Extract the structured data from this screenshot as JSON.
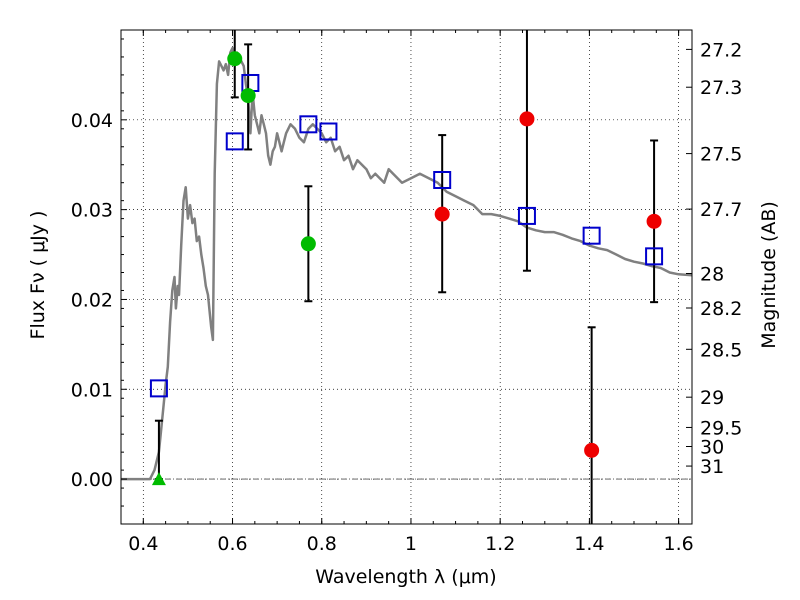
{
  "chart_data": {
    "type": "scatter",
    "xlabel": "Wavelength  λ (μm)",
    "ylabel": "Flux  Fν ( μJy )",
    "y2label": "Magnitude (AB)",
    "xlim": [
      0.35,
      1.63
    ],
    "ylim": [
      -0.005,
      0.05
    ],
    "grid": true,
    "x_ticks": [
      0.4,
      0.6,
      0.8,
      1.0,
      1.2,
      1.4,
      1.6
    ],
    "x_tick_labels": [
      "0.4",
      "0.6",
      "0.8",
      "1",
      "1.2",
      "1.4",
      "1.6"
    ],
    "y_ticks": [
      0.0,
      0.01,
      0.02,
      0.03,
      0.04
    ],
    "y_tick_labels": [
      "0.00",
      "0.01",
      "0.02",
      "0.03",
      "0.04"
    ],
    "y2_ticks": [
      {
        "flux": 0.04784,
        "label": "27.2"
      },
      {
        "flux": 0.04363,
        "label": "27.3"
      },
      {
        "flux": 0.03624,
        "label": "27.5"
      },
      {
        "flux": 0.03006,
        "label": "27.7"
      },
      {
        "flux": 0.02289,
        "label": "28"
      },
      {
        "flux": 0.01905,
        "label": "28.2"
      },
      {
        "flux": 0.01445,
        "label": "28.5"
      },
      {
        "flux": 0.00912,
        "label": "29"
      },
      {
        "flux": 0.00575,
        "label": "29.5"
      },
      {
        "flux": 0.00363,
        "label": "30"
      },
      {
        "flux": 0.00145,
        "label": "31"
      }
    ],
    "model_sed": {
      "color": "#808080",
      "points": [
        [
          0.35,
          0.0
        ],
        [
          0.415,
          0.0
        ],
        [
          0.425,
          0.001
        ],
        [
          0.435,
          0.003
        ],
        [
          0.445,
          0.008
        ],
        [
          0.45,
          0.0105
        ],
        [
          0.455,
          0.0125
        ],
        [
          0.46,
          0.0175
        ],
        [
          0.465,
          0.021
        ],
        [
          0.47,
          0.0225
        ],
        [
          0.473,
          0.019
        ],
        [
          0.477,
          0.0215
        ],
        [
          0.48,
          0.0205
        ],
        [
          0.485,
          0.026
        ],
        [
          0.49,
          0.031
        ],
        [
          0.495,
          0.0325
        ],
        [
          0.5,
          0.029
        ],
        [
          0.505,
          0.0305
        ],
        [
          0.51,
          0.0285
        ],
        [
          0.515,
          0.029
        ],
        [
          0.52,
          0.0265
        ],
        [
          0.525,
          0.027
        ],
        [
          0.53,
          0.025
        ],
        [
          0.535,
          0.0235
        ],
        [
          0.54,
          0.0215
        ],
        [
          0.545,
          0.0205
        ],
        [
          0.548,
          0.019
        ],
        [
          0.552,
          0.017
        ],
        [
          0.556,
          0.0155
        ],
        [
          0.56,
          0.034
        ],
        [
          0.565,
          0.044
        ],
        [
          0.57,
          0.0465
        ],
        [
          0.575,
          0.046
        ],
        [
          0.58,
          0.0455
        ],
        [
          0.585,
          0.0462
        ],
        [
          0.59,
          0.045
        ],
        [
          0.595,
          0.0475
        ],
        [
          0.6,
          0.048
        ],
        [
          0.605,
          0.046
        ],
        [
          0.61,
          0.0475
        ],
        [
          0.615,
          0.047
        ],
        [
          0.62,
          0.0465
        ],
        [
          0.625,
          0.046
        ],
        [
          0.63,
          0.044
        ],
        [
          0.635,
          0.0425
        ],
        [
          0.64,
          0.0385
        ],
        [
          0.645,
          0.043
        ],
        [
          0.65,
          0.0405
        ],
        [
          0.655,
          0.0395
        ],
        [
          0.66,
          0.0385
        ],
        [
          0.665,
          0.0405
        ],
        [
          0.67,
          0.0395
        ],
        [
          0.675,
          0.0385
        ],
        [
          0.68,
          0.036
        ],
        [
          0.685,
          0.035
        ],
        [
          0.69,
          0.0365
        ],
        [
          0.695,
          0.037
        ],
        [
          0.7,
          0.0385
        ],
        [
          0.705,
          0.0375
        ],
        [
          0.71,
          0.0365
        ],
        [
          0.715,
          0.0375
        ],
        [
          0.72,
          0.0385
        ],
        [
          0.73,
          0.0395
        ],
        [
          0.74,
          0.039
        ],
        [
          0.75,
          0.038
        ],
        [
          0.76,
          0.0375
        ],
        [
          0.77,
          0.039
        ],
        [
          0.78,
          0.0395
        ],
        [
          0.79,
          0.039
        ],
        [
          0.8,
          0.0385
        ],
        [
          0.81,
          0.0375
        ],
        [
          0.82,
          0.038
        ],
        [
          0.83,
          0.0365
        ],
        [
          0.84,
          0.037
        ],
        [
          0.85,
          0.0355
        ],
        [
          0.86,
          0.036
        ],
        [
          0.87,
          0.0345
        ],
        [
          0.88,
          0.0355
        ],
        [
          0.89,
          0.035
        ],
        [
          0.9,
          0.0345
        ],
        [
          0.91,
          0.0335
        ],
        [
          0.92,
          0.034
        ],
        [
          0.93,
          0.0335
        ],
        [
          0.94,
          0.033
        ],
        [
          0.95,
          0.0345
        ],
        [
          0.96,
          0.034
        ],
        [
          0.98,
          0.033
        ],
        [
          1.0,
          0.0335
        ],
        [
          1.02,
          0.034
        ],
        [
          1.04,
          0.0335
        ],
        [
          1.06,
          0.033
        ],
        [
          1.08,
          0.032
        ],
        [
          1.1,
          0.0315
        ],
        [
          1.12,
          0.031
        ],
        [
          1.14,
          0.0305
        ],
        [
          1.16,
          0.0295
        ],
        [
          1.18,
          0.0295
        ],
        [
          1.2,
          0.0293
        ],
        [
          1.22,
          0.029
        ],
        [
          1.24,
          0.0287
        ],
        [
          1.26,
          0.028
        ],
        [
          1.28,
          0.0277
        ],
        [
          1.3,
          0.0275
        ],
        [
          1.32,
          0.0275
        ],
        [
          1.34,
          0.0272
        ],
        [
          1.36,
          0.0268
        ],
        [
          1.38,
          0.0265
        ],
        [
          1.4,
          0.026
        ],
        [
          1.42,
          0.0257
        ],
        [
          1.44,
          0.0255
        ],
        [
          1.46,
          0.025
        ],
        [
          1.48,
          0.0245
        ],
        [
          1.5,
          0.0242
        ],
        [
          1.52,
          0.024
        ],
        [
          1.54,
          0.0237
        ],
        [
          1.56,
          0.0235
        ],
        [
          1.58,
          0.023
        ],
        [
          1.6,
          0.0228
        ],
        [
          1.63,
          0.0227
        ]
      ]
    },
    "model_photometry": {
      "color": "#0000cc",
      "marker": "open-square",
      "points": [
        [
          0.435,
          0.0101
        ],
        [
          0.605,
          0.0376
        ],
        [
          0.64,
          0.0441
        ],
        [
          0.77,
          0.0395
        ],
        [
          0.815,
          0.0387
        ],
        [
          1.07,
          0.0333
        ],
        [
          1.26,
          0.0293
        ],
        [
          1.405,
          0.0271
        ],
        [
          1.545,
          0.0248
        ]
      ]
    },
    "observed_optical": {
      "color": "#00bb00",
      "marker": "filled-circle",
      "points": [
        {
          "x": 0.605,
          "y": 0.0468,
          "yerr_lo": 0.0043,
          "yerr_hi": 0.004
        },
        {
          "x": 0.635,
          "y": 0.0427,
          "yerr_lo": 0.006,
          "yerr_hi": 0.0057
        },
        {
          "x": 0.77,
          "y": 0.0262,
          "yerr_lo": 0.0064,
          "yerr_hi": 0.0064
        }
      ],
      "upper_limit": {
        "x": 0.435,
        "y": 0.0,
        "err_hi": 0.0065,
        "marker": "triangle"
      }
    },
    "observed_nir": {
      "color": "#ee0000",
      "marker": "filled-circle",
      "points": [
        {
          "x": 1.07,
          "y": 0.0295,
          "yerr_lo": 0.0087,
          "yerr_hi": 0.0088
        },
        {
          "x": 1.26,
          "y": 0.0401,
          "yerr_lo": 0.0169,
          "yerr_hi": 0.0169
        },
        {
          "x": 1.405,
          "y": 0.0032,
          "yerr_lo": 0.0137,
          "yerr_hi": 0.0137
        },
        {
          "x": 1.545,
          "y": 0.0287,
          "yerr_lo": 0.009,
          "yerr_hi": 0.009
        }
      ]
    }
  }
}
